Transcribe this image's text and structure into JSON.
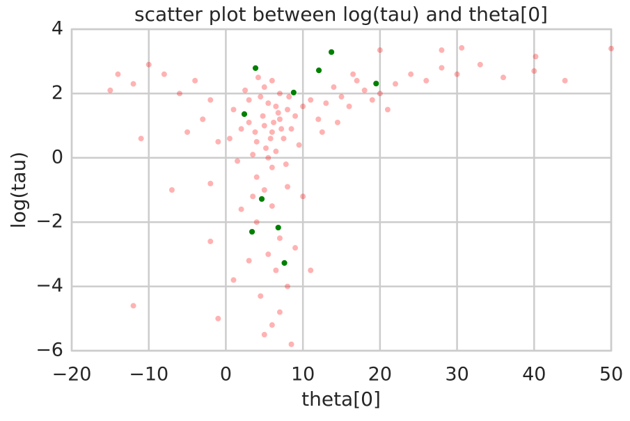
{
  "chart_data": {
    "type": "scatter",
    "title": "scatter plot between log(tau) and theta[0]",
    "x_label": "theta[0]",
    "y_label": "log(tau)",
    "xlim": [
      -20,
      50
    ],
    "ylim": [
      -6,
      4
    ],
    "xticks": [
      {
        "value": -20,
        "label": "−20"
      },
      {
        "value": -10,
        "label": "−10"
      },
      0,
      10,
      20,
      30,
      40,
      50
    ],
    "yticks": [
      {
        "value": -6,
        "label": "−6"
      },
      {
        "value": -4,
        "label": "−4"
      },
      {
        "value": -2,
        "label": "−2"
      },
      0,
      2,
      4
    ],
    "grid": true,
    "series": [
      {
        "color": "#ff0000",
        "opacity": 0.3,
        "x": [
          5,
          6,
          7,
          4,
          8,
          3,
          6.5,
          5.5,
          7.5,
          9,
          2,
          4.5,
          10,
          6,
          3.5,
          8.5,
          5,
          7,
          11,
          1,
          2.5,
          9.5,
          4,
          6.8,
          5.2,
          7.8,
          3,
          12,
          0.5,
          1.5,
          6.2,
          5.8,
          4.8,
          7.2,
          6.5,
          5.5,
          3.8,
          8.2,
          6,
          4.2,
          13,
          15,
          14,
          16,
          18,
          17,
          20,
          22,
          19,
          24,
          21,
          26,
          28,
          30,
          33,
          36,
          40,
          30.6,
          40.2,
          28,
          20,
          44,
          50,
          12.5,
          14.5,
          16.5,
          -2,
          -4,
          -6,
          -8,
          -10,
          -12,
          -14,
          -15,
          -1,
          -3,
          -5,
          -7,
          -2,
          -11,
          5,
          6,
          4,
          7,
          5.5,
          6.5,
          8,
          4.5,
          7,
          3,
          9,
          2,
          10,
          6,
          8.5,
          5,
          -2,
          1,
          -1,
          11,
          -12,
          3.5,
          8
        ],
        "values": [
          1,
          0.8,
          1.2,
          0.5,
          1.5,
          1.1,
          0.2,
          1.7,
          0.6,
          1.3,
          0.9,
          1.9,
          1.6,
          -0.3,
          0.1,
          0.9,
          2.2,
          2,
          1.8,
          1.5,
          2.1,
          0.4,
          -0.6,
          1.4,
          0.3,
          -0.2,
          1.8,
          1.2,
          0.6,
          -0.1,
          1.1,
          0.6,
          1.3,
          0.9,
          1.6,
          0,
          0.8,
          1.9,
          2.4,
          2.5,
          1.7,
          1.9,
          2.2,
          1.6,
          2.1,
          2.4,
          2,
          2.3,
          1.8,
          2.6,
          1.5,
          2.4,
          2.8,
          2.6,
          2.9,
          2.5,
          2.7,
          3.42,
          3.15,
          3.35,
          3.35,
          2.4,
          3.4,
          0.8,
          1.1,
          2.6,
          1.8,
          2.4,
          2,
          2.6,
          2.9,
          2.3,
          2.6,
          2.1,
          0.5,
          1.2,
          0.8,
          -1,
          -0.8,
          0.6,
          -1,
          -1.5,
          -2,
          -2.5,
          -3,
          -3.5,
          -4,
          -4.3,
          -4.8,
          -3.2,
          -2.8,
          -1.6,
          -1.2,
          -5.2,
          -5.8,
          -5.5,
          -2.6,
          -3.8,
          -5,
          -3.5,
          -4.6,
          -1.2,
          -0.9
        ]
      },
      {
        "color": "#008000",
        "opacity": 1,
        "x": [
          3.85,
          13.7,
          12.07,
          8.8,
          19.5,
          2.4,
          4.66,
          3.4,
          6.8,
          7.6
        ],
        "values": [
          2.79,
          3.29,
          2.72,
          2.03,
          2.31,
          1.36,
          -1.28,
          -2.3,
          -2.17,
          -3.27
        ]
      }
    ]
  }
}
